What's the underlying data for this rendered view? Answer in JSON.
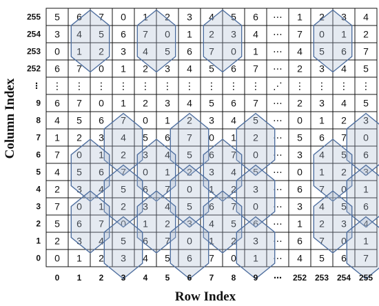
{
  "axis": {
    "x_title": "Row Index",
    "y_title": "Column Index",
    "x_ticks": [
      "0",
      "1",
      "2",
      "3",
      "4",
      "5",
      "6",
      "7",
      "8",
      "9",
      "⋯",
      "252",
      "253",
      "254",
      "255"
    ],
    "y_ticks": [
      "255",
      "254",
      "253",
      "252",
      "⋮",
      "9",
      "8",
      "7",
      "6",
      "5",
      "4",
      "3",
      "2",
      "1",
      "0"
    ]
  },
  "grid": {
    "rows": [
      [
        "5",
        "6",
        "7",
        "0",
        "1",
        "2",
        "3",
        "4",
        "5",
        "6",
        "⋯",
        "1",
        "2",
        "3",
        "4"
      ],
      [
        "3",
        "4",
        "5",
        "6",
        "7",
        "0",
        "1",
        "2",
        "3",
        "4",
        "⋯",
        "7",
        "0",
        "1",
        "2"
      ],
      [
        "0",
        "1",
        "2",
        "3",
        "4",
        "5",
        "6",
        "7",
        "0",
        "1",
        "⋯",
        "4",
        "5",
        "6",
        "7"
      ],
      [
        "6",
        "7",
        "0",
        "1",
        "2",
        "3",
        "4",
        "5",
        "6",
        "7",
        "⋯",
        "2",
        "3",
        "4",
        "5"
      ],
      [
        "⋮",
        "⋮",
        "⋮",
        "⋮",
        "⋮",
        "⋮",
        "⋮",
        "⋮",
        "⋮",
        "⋮",
        "⋰",
        "⋮",
        "⋮",
        "⋮",
        "⋮"
      ],
      [
        "6",
        "7",
        "0",
        "1",
        "2",
        "3",
        "4",
        "5",
        "6",
        "7",
        "⋯",
        "2",
        "3",
        "4",
        "5"
      ],
      [
        "4",
        "5",
        "6",
        "7",
        "0",
        "1",
        "2",
        "3",
        "4",
        "5",
        "⋯",
        "0",
        "1",
        "2",
        "3"
      ],
      [
        "1",
        "2",
        "3",
        "4",
        "5",
        "6",
        "7",
        "0",
        "1",
        "2",
        "⋯",
        "5",
        "6",
        "7",
        "0"
      ],
      [
        "7",
        "0",
        "1",
        "2",
        "3",
        "4",
        "5",
        "6",
        "7",
        "0",
        "⋯",
        "3",
        "4",
        "5",
        "6"
      ],
      [
        "4",
        "5",
        "6",
        "7",
        "0",
        "1",
        "2",
        "3",
        "4",
        "5",
        "⋯",
        "0",
        "1",
        "2",
        "3"
      ],
      [
        "2",
        "3",
        "4",
        "5",
        "6",
        "7",
        "0",
        "1",
        "2",
        "3",
        "⋯",
        "6",
        "7",
        "0",
        "1"
      ],
      [
        "7",
        "0",
        "1",
        "2",
        "3",
        "4",
        "5",
        "6",
        "7",
        "0",
        "⋯",
        "3",
        "4",
        "5",
        "6"
      ],
      [
        "5",
        "6",
        "7",
        "0",
        "1",
        "2",
        "3",
        "4",
        "5",
        "6",
        "⋯",
        "1",
        "2",
        "3",
        "4"
      ],
      [
        "2",
        "3",
        "4",
        "5",
        "6",
        "7",
        "0",
        "1",
        "2",
        "3",
        "⋯",
        "6",
        "7",
        "0",
        "1"
      ],
      [
        "0",
        "1",
        "2",
        "3",
        "4",
        "5",
        "6",
        "7",
        "0",
        "1",
        "⋯",
        "4",
        "5",
        "6",
        "7"
      ]
    ]
  },
  "colors": {
    "grid_line": "#111111",
    "hex_stroke": "#4f6f9f",
    "hex_fill": "#a9b9cf"
  }
}
